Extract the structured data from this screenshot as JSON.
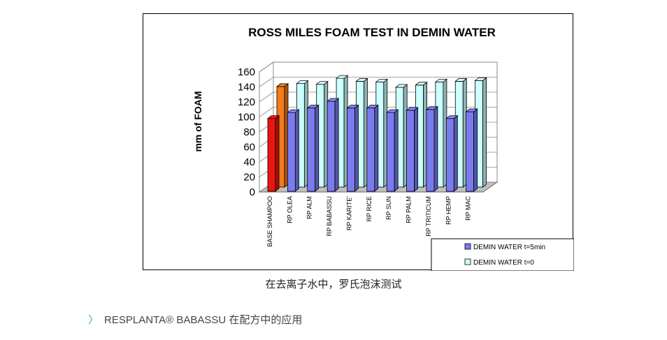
{
  "caption": "在去离子水中，罗氏泡沫测试",
  "section_link": {
    "chevron": "〉",
    "label": "RESPLANTA® BABASSU 在配方中的应用"
  },
  "chart_data": {
    "type": "bar",
    "title": "ROSS MILES FOAM TEST IN DEMIN WATER",
    "ylabel": "mm of FOAM",
    "xlabel": "",
    "ylim": [
      0,
      160
    ],
    "yticks": [
      0,
      20,
      40,
      60,
      80,
      100,
      120,
      140,
      160
    ],
    "grid": true,
    "legend_position": "bottom-right",
    "categories": [
      "BASE SHAMPOO",
      "RP OLEA",
      "RP ALM",
      "RP BABASSU",
      "RP KARITE'",
      "RP RICE",
      "RP SUN",
      "RP PALM",
      "RP TRITICUM",
      "RP HEMP",
      "RP MAC"
    ],
    "series": [
      {
        "name": "DEMIN WATER t=5min",
        "color": "#7b7bf0",
        "values": [
          97,
          105,
          111,
          120,
          111,
          111,
          105,
          108,
          109,
          97,
          106
        ]
      },
      {
        "name": "DEMIN WATER t=0",
        "color": "#ccffff",
        "values": [
          134,
          138,
          137,
          145,
          141,
          140,
          133,
          136,
          140,
          141,
          142
        ]
      }
    ],
    "highlight": {
      "category": "BASE SHAMPOO",
      "colors": [
        "#e8160f",
        "#f47a1a"
      ]
    }
  }
}
